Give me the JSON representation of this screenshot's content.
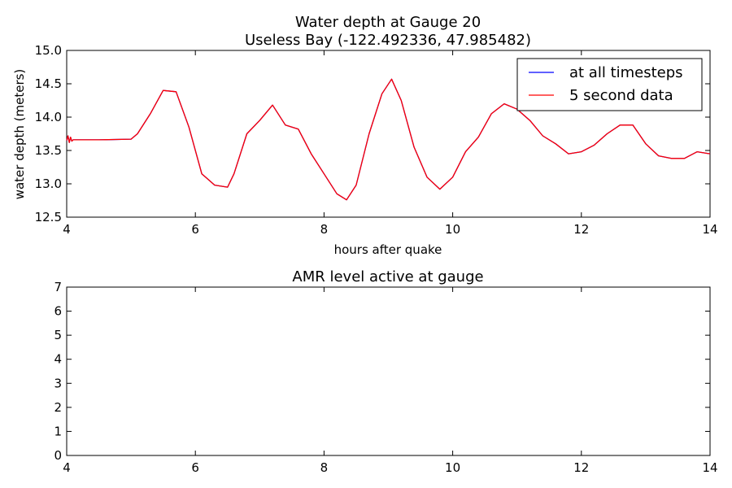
{
  "chart_data": [
    {
      "type": "line",
      "title": "Water depth at Gauge 20",
      "subtitle": "Useless Bay  (-122.492336, 47.985482)",
      "xlabel": "hours after quake",
      "ylabel": "water depth (meters)",
      "xlim": [
        4,
        14
      ],
      "ylim": [
        12.5,
        15.0
      ],
      "xticks": [
        4,
        6,
        8,
        10,
        12,
        14
      ],
      "yticks": [
        12.5,
        13.0,
        13.5,
        14.0,
        14.5,
        15.0
      ],
      "ytick_labels": [
        "12.5",
        "13.0",
        "13.5",
        "14.0",
        "14.5",
        "15.0"
      ],
      "grid": false,
      "legend_position": "top-right",
      "series": [
        {
          "name": "at all timesteps",
          "color": "#0000ff",
          "x": [
            4.0,
            4.02,
            4.04,
            4.06,
            4.08,
            4.1,
            4.5,
            5.0,
            5.1,
            5.3,
            5.5,
            5.7,
            5.9,
            6.1,
            6.3,
            6.5,
            6.6,
            6.8,
            7.0,
            7.2,
            7.4,
            7.6,
            7.8,
            8.0,
            8.2,
            8.35,
            8.5,
            8.7,
            8.9,
            9.05,
            9.2,
            9.4,
            9.6,
            9.8,
            10.0,
            10.2,
            10.4,
            10.6,
            10.8,
            11.0,
            11.2,
            11.4,
            11.6,
            11.8,
            12.0,
            12.2,
            12.4,
            12.6,
            12.8,
            13.0,
            13.2,
            13.4,
            13.6,
            13.8,
            14.0
          ],
          "y": [
            13.65,
            13.72,
            13.62,
            13.7,
            13.64,
            13.66,
            13.66,
            13.67,
            13.75,
            14.05,
            14.4,
            14.38,
            13.85,
            13.15,
            12.98,
            12.95,
            13.15,
            13.75,
            13.95,
            14.18,
            13.88,
            13.82,
            13.45,
            13.15,
            12.85,
            12.76,
            12.98,
            13.75,
            14.35,
            14.57,
            14.25,
            13.55,
            13.1,
            12.92,
            13.1,
            13.48,
            13.7,
            14.05,
            14.2,
            14.12,
            13.95,
            13.72,
            13.6,
            13.45,
            13.48,
            13.58,
            13.75,
            13.88,
            13.88,
            13.6,
            13.42,
            13.38,
            13.38,
            13.48,
            13.45
          ]
        },
        {
          "name": "5 second data",
          "color": "#ff0000",
          "x": [
            4.0,
            4.02,
            4.04,
            4.06,
            4.08,
            4.1,
            4.5,
            5.0,
            5.1,
            5.3,
            5.5,
            5.7,
            5.9,
            6.1,
            6.3,
            6.5,
            6.6,
            6.8,
            7.0,
            7.2,
            7.4,
            7.6,
            7.8,
            8.0,
            8.2,
            8.35,
            8.5,
            8.7,
            8.9,
            9.05,
            9.2,
            9.4,
            9.6,
            9.8,
            10.0,
            10.2,
            10.4,
            10.6,
            10.8,
            11.0,
            11.2,
            11.4,
            11.6,
            11.8,
            12.0,
            12.2,
            12.4,
            12.6,
            12.8,
            13.0,
            13.2,
            13.4,
            13.6,
            13.8,
            14.0
          ],
          "y": [
            13.65,
            13.72,
            13.62,
            13.7,
            13.64,
            13.66,
            13.66,
            13.67,
            13.75,
            14.05,
            14.4,
            14.38,
            13.85,
            13.15,
            12.98,
            12.95,
            13.15,
            13.75,
            13.95,
            14.18,
            13.88,
            13.82,
            13.45,
            13.15,
            12.85,
            12.76,
            12.98,
            13.75,
            14.35,
            14.57,
            14.25,
            13.55,
            13.1,
            12.92,
            13.1,
            13.48,
            13.7,
            14.05,
            14.2,
            14.12,
            13.95,
            13.72,
            13.6,
            13.45,
            13.48,
            13.58,
            13.75,
            13.88,
            13.88,
            13.6,
            13.42,
            13.38,
            13.38,
            13.48,
            13.45
          ]
        }
      ]
    },
    {
      "type": "line",
      "title": "AMR level active at gauge",
      "xlabel": "",
      "ylabel": "",
      "xlim": [
        4,
        14
      ],
      "ylim": [
        0,
        7
      ],
      "xticks": [
        4,
        6,
        8,
        10,
        12,
        14
      ],
      "yticks": [
        0,
        1,
        2,
        3,
        4,
        5,
        6,
        7
      ],
      "grid": false,
      "series": []
    }
  ]
}
